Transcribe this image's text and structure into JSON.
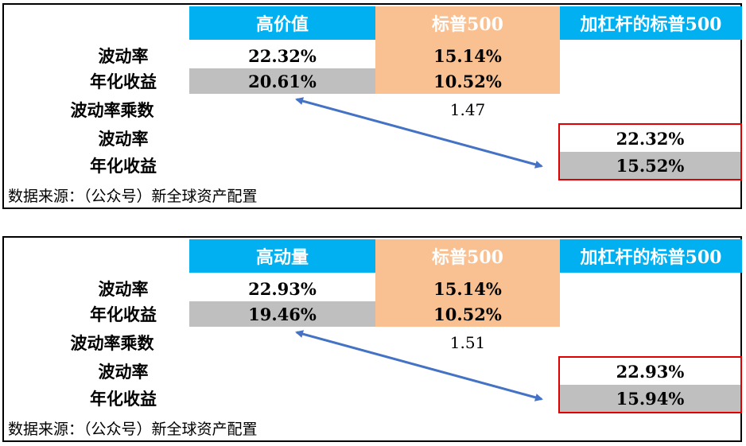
{
  "colors": {
    "header_blue": "#00B0F0",
    "header_orange": "#F9C092",
    "grey": "#BFBFBF",
    "red_box": "#E00000",
    "arrow": "#4472C4"
  },
  "row_labels": {
    "volatility": "波动率",
    "annual_return": "年化收益",
    "multiplier": "波动率乘数"
  },
  "source": "数据来源：（公众号）新全球资产配置",
  "panels": [
    {
      "headers": [
        "高价值",
        "标普500",
        "加杠杆的标普500"
      ],
      "factor_vol": "22.32%",
      "factor_ret": "20.61%",
      "sp_vol": "15.14%",
      "sp_ret": "10.52%",
      "multiplier": "1.47",
      "lev_vol": "22.32%",
      "lev_ret": "15.52%"
    },
    {
      "headers": [
        "高动量",
        "标普500",
        "加杠杆的标普500"
      ],
      "factor_vol": "22.93%",
      "factor_ret": "19.46%",
      "sp_vol": "15.14%",
      "sp_ret": "10.52%",
      "multiplier": "1.51",
      "lev_vol": "22.93%",
      "lev_ret": "15.94%"
    }
  ]
}
